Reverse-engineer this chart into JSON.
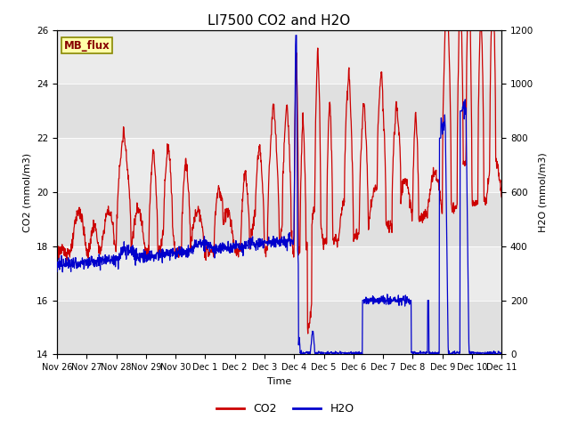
{
  "title": "LI7500 CO2 and H2O",
  "xlabel": "Time",
  "ylabel_left": "CO2 (mmol/m3)",
  "ylabel_right": "H2O (mmol/m3)",
  "co2_ylim": [
    14,
    26
  ],
  "h2o_ylim": [
    0,
    1200
  ],
  "co2_yticks": [
    14,
    16,
    18,
    20,
    22,
    24,
    26
  ],
  "h2o_yticks": [
    0,
    200,
    400,
    600,
    800,
    1000,
    1200
  ],
  "xtick_labels": [
    "Nov 26",
    "Nov 27",
    "Nov 28",
    "Nov 29",
    "Nov 30",
    "Dec 1",
    "Dec 2",
    "Dec 3",
    "Dec 4",
    "Dec 5",
    "Dec 6",
    "Dec 7",
    "Dec 8",
    "Dec 9",
    "Dec 10",
    "Dec 11"
  ],
  "co2_color": "#cc0000",
  "h2o_color": "#0000cc",
  "bg_color": "#e0e0e0",
  "band_light_color": "#ebebeb",
  "mb_flux_bg": "#ffffaa",
  "mb_flux_text": "#880000",
  "mb_flux_border": "#888800",
  "title_fontsize": 11,
  "label_fontsize": 8,
  "tick_fontsize": 7.5
}
